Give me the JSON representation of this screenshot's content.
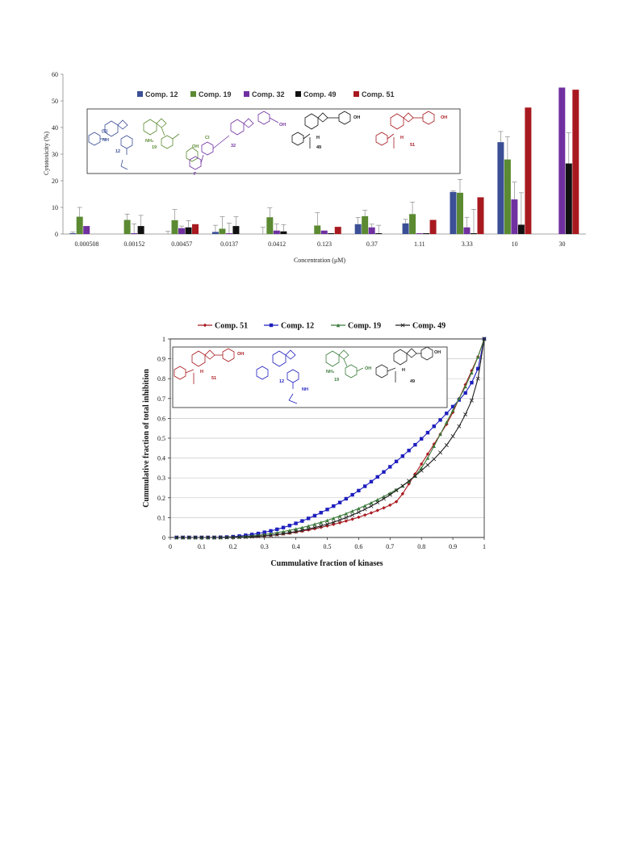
{
  "colors": {
    "c12": "#3b4f96",
    "c19": "#5b8a32",
    "c32": "#7030a0",
    "c49": "#111111",
    "c51": "#a8191f",
    "l51": "#a8191f",
    "l12": "#1f1fbf",
    "l19": "#3a7a3a",
    "l49": "#222222",
    "grid": "#c8c8c8"
  },
  "chart1": {
    "type": "bar",
    "xlabel": "Concentration (μM)",
    "ylabel": "Cytotoxicity (%)",
    "ylim": [
      0,
      60
    ],
    "yticks": [
      "0",
      "10",
      "20",
      "30",
      "40",
      "50",
      "60"
    ],
    "categories": [
      "0.000508",
      "0.00152",
      "0.00457",
      "0.0137",
      "0.0412",
      "0.123",
      "0.37",
      "1.11",
      "3.33",
      "10",
      "30"
    ],
    "legend": [
      "Comp. 12",
      "Comp. 19",
      "Comp. 32",
      "Comp. 49",
      "Comp. 51"
    ],
    "compound_numbers": [
      "12",
      "19",
      "32",
      "49",
      "51"
    ],
    "substituent_labels": [
      "NH",
      "NH₂",
      "Cl",
      "F",
      "OH",
      "H",
      "(S)"
    ]
  },
  "chart2": {
    "type": "line",
    "xlabel": "Cummulative fraction of kinases",
    "ylabel": "Cummulative fraction of total inhibition",
    "xlim": [
      0,
      1
    ],
    "ylim": [
      0,
      1
    ],
    "xticks": [
      "0",
      "0.1",
      "0.2",
      "0.3",
      "0.4",
      "0.5",
      "0.6",
      "0.7",
      "0.8",
      "0.9",
      "1"
    ],
    "yticks": [
      "0",
      "0.1",
      "0.2",
      "0.3",
      "0.4",
      "0.5",
      "0.6",
      "0.7",
      "0.8",
      "0.9",
      "1"
    ],
    "legend": [
      "Comp. 51",
      "Comp. 12",
      "Comp. 19",
      "Comp. 49"
    ],
    "compound_numbers": [
      "51",
      "12",
      "19",
      "49"
    ]
  },
  "chart_data": [
    {
      "type": "bar",
      "xlabel": "Concentration (μM)",
      "ylabel": "Cytotoxicity (%)",
      "ylim": [
        0,
        60
      ],
      "grid": false,
      "legend_position": "top",
      "categories": [
        "0.000508",
        "0.00152",
        "0.00457",
        "0.0137",
        "0.0412",
        "0.123",
        "0.37",
        "1.11",
        "3.33",
        "10",
        "30"
      ],
      "series": [
        {
          "name": "Comp. 12",
          "values": [
            0.3,
            0,
            0,
            0.8,
            0,
            0,
            3.7,
            4.0,
            15.8,
            34.5,
            0
          ],
          "errors": [
            0.5,
            0,
            1.0,
            2.5,
            2.5,
            0,
            2.5,
            1.5,
            0.4,
            4.0,
            0
          ]
        },
        {
          "name": "Comp. 19",
          "values": [
            6.5,
            5.3,
            5.2,
            2.0,
            6.3,
            3.2,
            6.7,
            7.5,
            15.5,
            28.0,
            0
          ],
          "errors": [
            3.5,
            2.2,
            4.0,
            4.5,
            3.5,
            4.8,
            2.2,
            4.5,
            5.0,
            8.5,
            0
          ]
        },
        {
          "name": "Comp. 32",
          "values": [
            3.0,
            0.3,
            2.2,
            0.3,
            1.3,
            1.3,
            2.5,
            0.3,
            2.5,
            13.0,
            55.0
          ],
          "errors": [
            0,
            3.5,
            0.8,
            3.8,
            2.5,
            0,
            1.2,
            0,
            3.8,
            6.5,
            0
          ]
        },
        {
          "name": "Comp. 49",
          "values": [
            0,
            3.0,
            2.5,
            3.0,
            1.0,
            0.3,
            0.3,
            0.3,
            0.3,
            3.5,
            26.5
          ],
          "errors": [
            0,
            4.0,
            2.5,
            3.5,
            2.5,
            0,
            3.0,
            0,
            9.0,
            12.0,
            11.5
          ]
        },
        {
          "name": "Comp. 51",
          "values": [
            0,
            0,
            3.7,
            0,
            0,
            2.7,
            0,
            5.3,
            13.8,
            47.5,
            54.2
          ],
          "errors": [
            0,
            0,
            0,
            0,
            0,
            0,
            0,
            0,
            0,
            0,
            0
          ]
        }
      ]
    },
    {
      "type": "line",
      "xlabel": "Cummulative fraction of kinases",
      "ylabel": "Cummulative fraction of total inhibition",
      "xlim": [
        0,
        1
      ],
      "ylim": [
        0,
        1
      ],
      "grid": true,
      "legend_position": "top",
      "x": [
        0.02,
        0.04,
        0.06,
        0.08,
        0.1,
        0.12,
        0.14,
        0.16,
        0.18,
        0.2,
        0.22,
        0.24,
        0.26,
        0.28,
        0.3,
        0.32,
        0.34,
        0.36,
        0.38,
        0.4,
        0.42,
        0.44,
        0.46,
        0.48,
        0.5,
        0.52,
        0.54,
        0.56,
        0.58,
        0.6,
        0.62,
        0.64,
        0.66,
        0.68,
        0.7,
        0.72,
        0.74,
        0.76,
        0.78,
        0.8,
        0.82,
        0.84,
        0.86,
        0.88,
        0.9,
        0.92,
        0.94,
        0.96,
        0.98,
        1.0
      ],
      "series": [
        {
          "name": "Comp. 51",
          "values": [
            0,
            0,
            0,
            0,
            0,
            0,
            0,
            0,
            0,
            0.001,
            0.002,
            0.003,
            0.004,
            0.006,
            0.008,
            0.011,
            0.014,
            0.018,
            0.022,
            0.027,
            0.032,
            0.038,
            0.044,
            0.051,
            0.058,
            0.066,
            0.074,
            0.083,
            0.092,
            0.102,
            0.113,
            0.124,
            0.136,
            0.149,
            0.163,
            0.18,
            0.22,
            0.27,
            0.32,
            0.37,
            0.42,
            0.47,
            0.52,
            0.57,
            0.63,
            0.7,
            0.77,
            0.84,
            0.91,
            1.0
          ]
        },
        {
          "name": "Comp. 12",
          "values": [
            0,
            0,
            0,
            0,
            0,
            0,
            0,
            0.001,
            0.002,
            0.004,
            0.007,
            0.011,
            0.015,
            0.02,
            0.026,
            0.033,
            0.041,
            0.05,
            0.06,
            0.071,
            0.083,
            0.096,
            0.11,
            0.125,
            0.141,
            0.158,
            0.176,
            0.195,
            0.215,
            0.236,
            0.258,
            0.281,
            0.305,
            0.33,
            0.356,
            0.383,
            0.41,
            0.438,
            0.467,
            0.497,
            0.528,
            0.56,
            0.592,
            0.625,
            0.659,
            0.693,
            0.728,
            0.78,
            0.85,
            1.0
          ]
        },
        {
          "name": "Comp. 19",
          "values": [
            0,
            0,
            0,
            0,
            0,
            0,
            0,
            0,
            0.001,
            0.002,
            0.003,
            0.005,
            0.008,
            0.011,
            0.015,
            0.019,
            0.024,
            0.03,
            0.036,
            0.043,
            0.05,
            0.058,
            0.067,
            0.076,
            0.086,
            0.097,
            0.108,
            0.12,
            0.133,
            0.146,
            0.16,
            0.175,
            0.19,
            0.206,
            0.223,
            0.241,
            0.26,
            0.282,
            0.31,
            0.35,
            0.4,
            0.46,
            0.52,
            0.58,
            0.64,
            0.7,
            0.76,
            0.83,
            0.91,
            1.0
          ]
        },
        {
          "name": "Comp. 49",
          "values": [
            0,
            0,
            0,
            0,
            0,
            0,
            0,
            0,
            0,
            0.001,
            0.001,
            0.002,
            0.004,
            0.006,
            0.008,
            0.011,
            0.015,
            0.019,
            0.024,
            0.03,
            0.036,
            0.043,
            0.05,
            0.058,
            0.067,
            0.077,
            0.088,
            0.1,
            0.113,
            0.127,
            0.142,
            0.158,
            0.176,
            0.195,
            0.215,
            0.237,
            0.26,
            0.285,
            0.31,
            0.337,
            0.365,
            0.395,
            0.428,
            0.465,
            0.51,
            0.56,
            0.62,
            0.69,
            0.8,
            1.0
          ]
        }
      ]
    }
  ]
}
